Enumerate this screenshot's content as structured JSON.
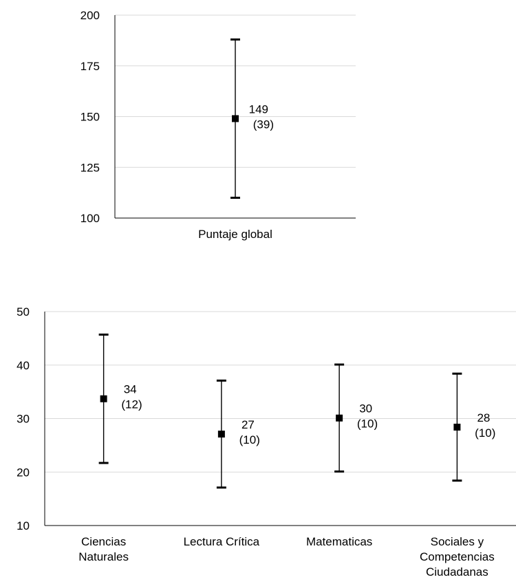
{
  "chart_data": [
    {
      "type": "scatter",
      "title": "",
      "xlabel": "",
      "ylabel": "",
      "ylim": [
        100,
        200
      ],
      "yticks": [
        100,
        125,
        150,
        175,
        200
      ],
      "grid": true,
      "categories": [
        "Puntaje global"
      ],
      "series": [
        {
          "mean": [
            149
          ],
          "sd": [
            39
          ],
          "labels": [
            "149"
          ],
          "sd_labels": [
            "(39)"
          ]
        }
      ]
    },
    {
      "type": "scatter",
      "title": "",
      "xlabel": "",
      "ylabel": "",
      "ylim": [
        10,
        50
      ],
      "yticks": [
        10,
        20,
        30,
        40,
        50
      ],
      "grid": true,
      "categories": [
        [
          "Ciencias",
          "Naturales"
        ],
        [
          "Lectura Crítica"
        ],
        [
          "Matematicas"
        ],
        [
          "Sociales y",
          "Competencias",
          "Ciudadanas"
        ]
      ],
      "series": [
        {
          "mean": [
            33.7,
            27.1,
            30.1,
            28.4
          ],
          "sd": [
            12,
            10,
            10,
            10
          ],
          "labels": [
            "34",
            "27",
            "30",
            "28"
          ],
          "sd_labels": [
            "(12)",
            "(10)",
            "(10)",
            "(10)"
          ]
        }
      ]
    }
  ]
}
